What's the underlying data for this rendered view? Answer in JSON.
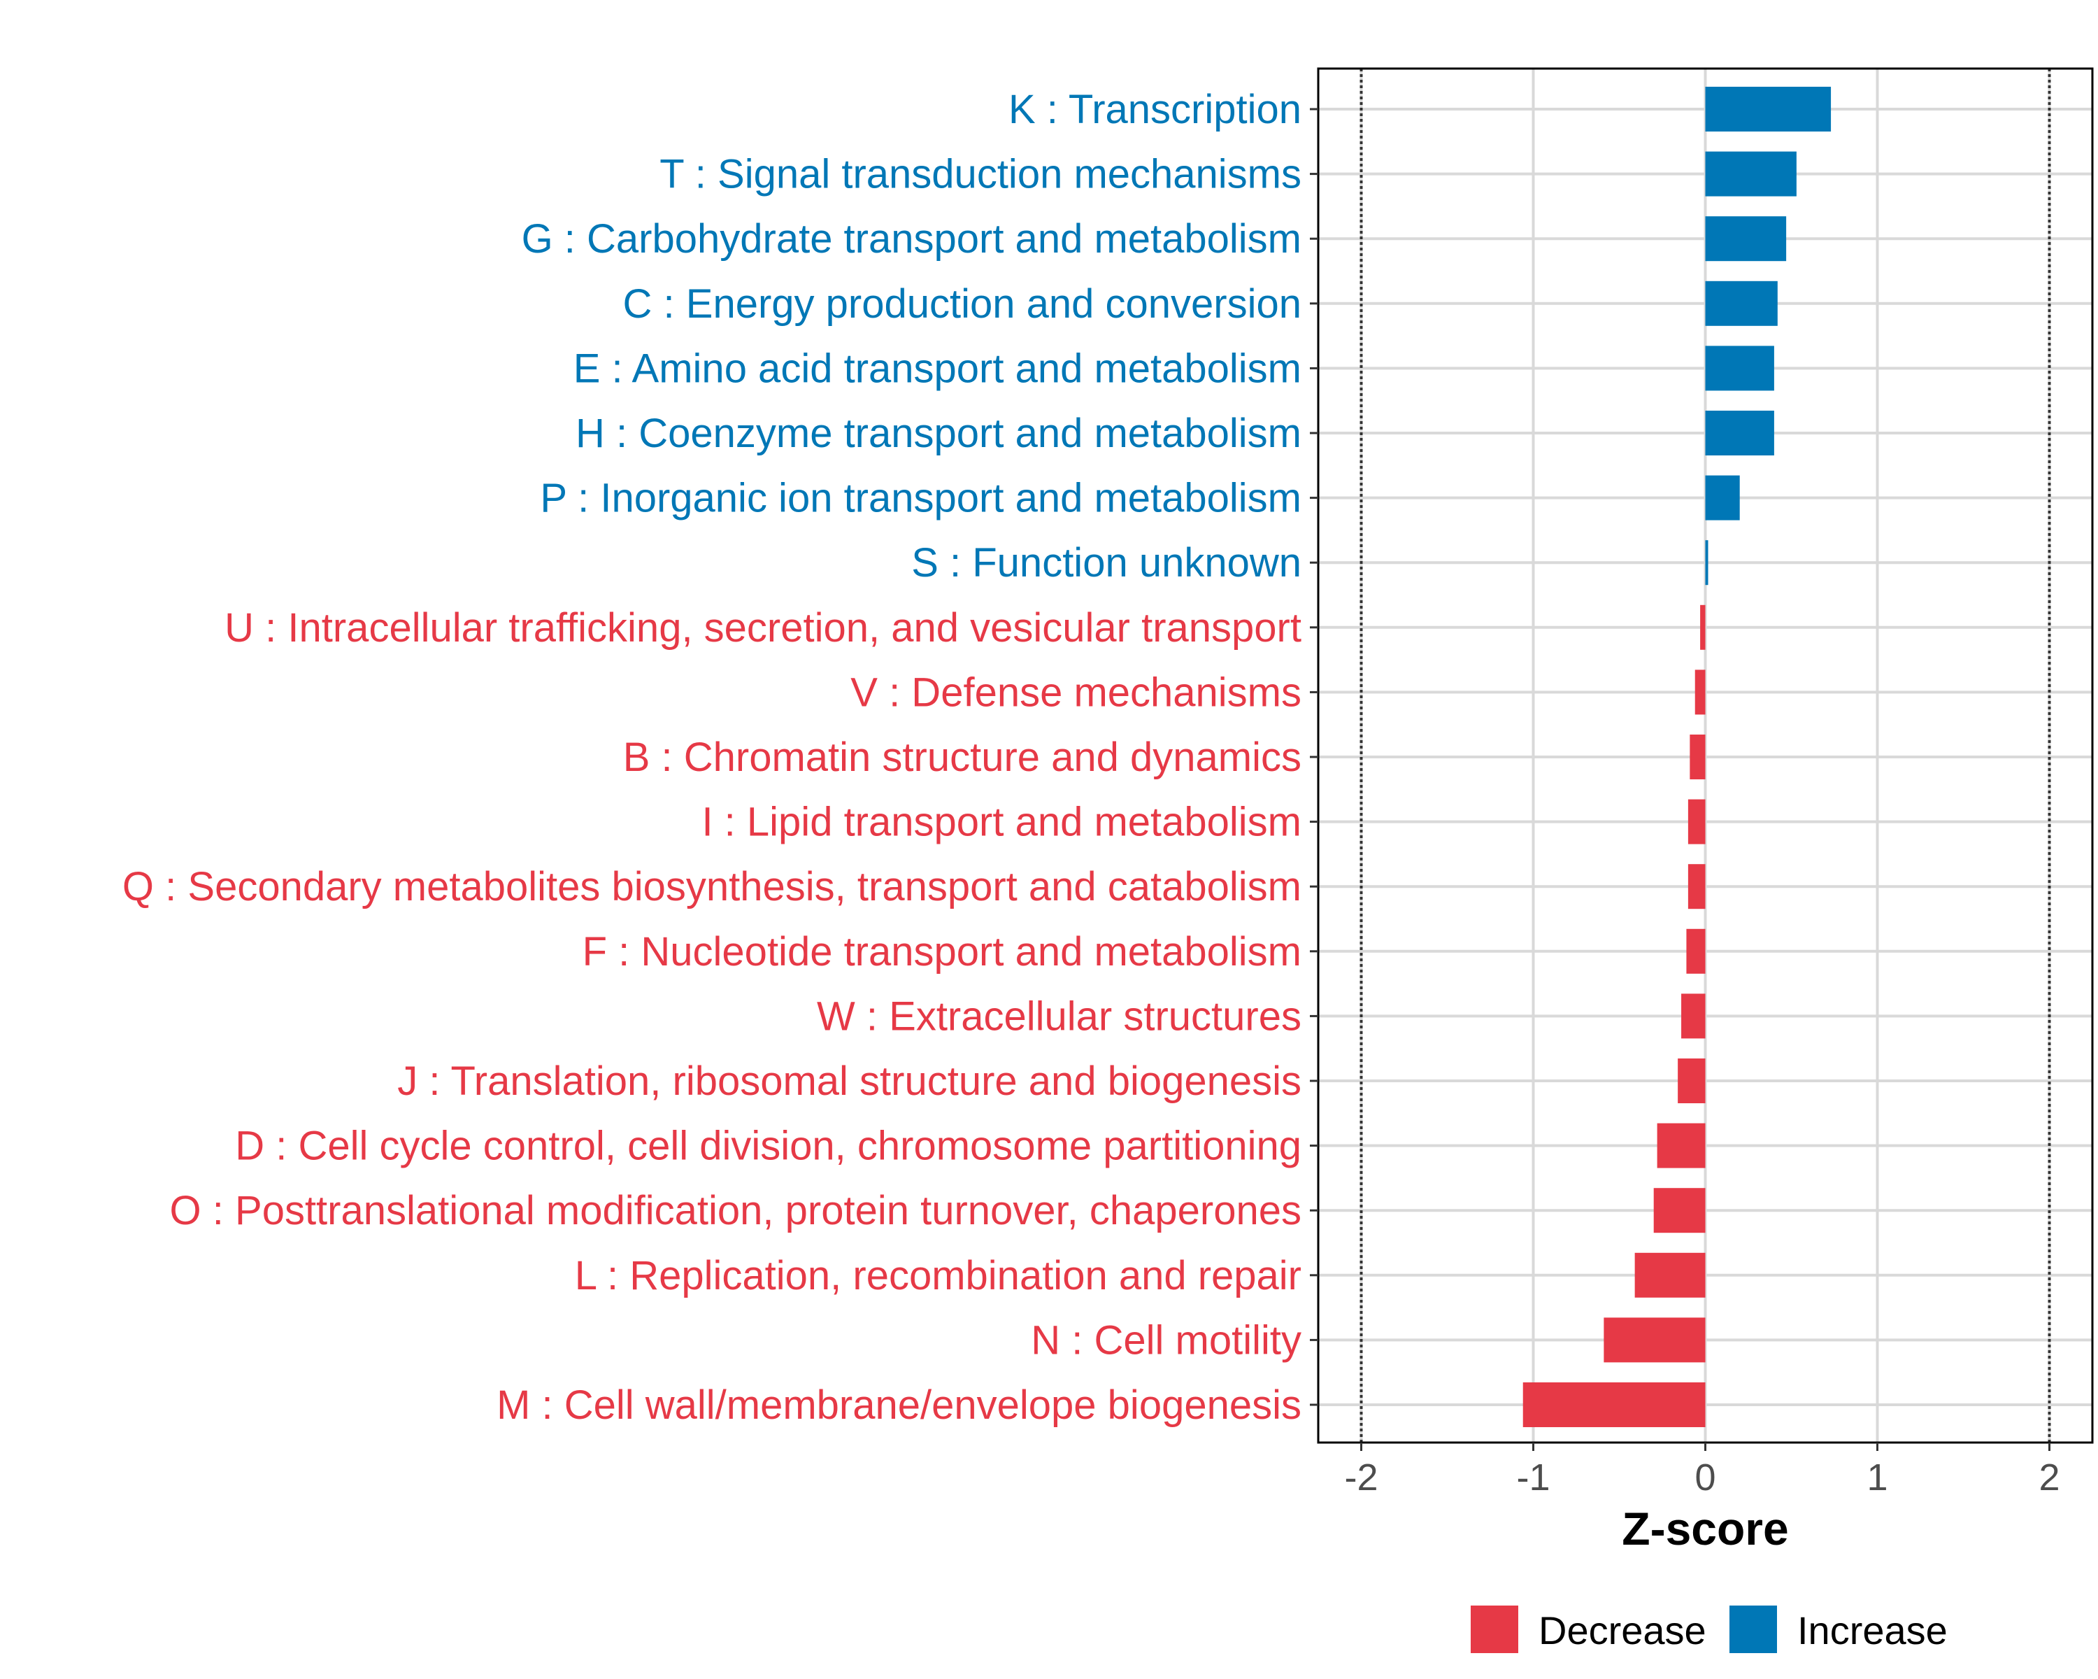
{
  "chart_data": {
    "type": "bar",
    "orientation": "horizontal",
    "categories": [
      "K : Transcription",
      "T : Signal transduction mechanisms",
      "G : Carbohydrate transport and metabolism",
      "C : Energy production and conversion",
      "E : Amino acid transport and metabolism",
      "H : Coenzyme transport and metabolism",
      "P : Inorganic ion transport and metabolism",
      "S : Function unknown",
      "U : Intracellular trafficking, secretion, and vesicular transport",
      "V : Defense mechanisms",
      "B : Chromatin structure and dynamics",
      "I : Lipid transport and metabolism",
      "Q : Secondary metabolites biosynthesis, transport and catabolism",
      "F : Nucleotide transport and metabolism",
      "W : Extracellular structures",
      "J : Translation, ribosomal structure and biogenesis",
      "D : Cell cycle control, cell division, chromosome partitioning",
      "O : Posttranslational modification, protein turnover, chaperones",
      "L : Replication, recombination and repair",
      "N : Cell motility",
      "M : Cell wall/membrane/envelope biogenesis"
    ],
    "values": [
      0.73,
      0.53,
      0.47,
      0.42,
      0.4,
      0.4,
      0.2,
      0.01,
      -0.03,
      -0.06,
      -0.09,
      -0.1,
      -0.1,
      -0.11,
      -0.14,
      -0.16,
      -0.28,
      -0.3,
      -0.41,
      -0.59,
      -1.06
    ],
    "groups": [
      "Increase",
      "Increase",
      "Increase",
      "Increase",
      "Increase",
      "Increase",
      "Increase",
      "Increase",
      "Decrease",
      "Decrease",
      "Decrease",
      "Decrease",
      "Decrease",
      "Decrease",
      "Decrease",
      "Decrease",
      "Decrease",
      "Decrease",
      "Decrease",
      "Decrease",
      "Decrease"
    ],
    "xlabel": "Z-score",
    "ylabel": "",
    "xlim": [
      -2.25,
      2.25
    ],
    "xticks": [
      -2,
      -1,
      0,
      1,
      2
    ],
    "xtick_labels": [
      "-2",
      "-1",
      "0",
      "1",
      "2"
    ],
    "reference_lines": [
      -2,
      2
    ],
    "grid": true,
    "legend": {
      "position": "bottom",
      "entries": [
        {
          "label": "Decrease",
          "color": "#E63946"
        },
        {
          "label": "Increase",
          "color": "#0077B6"
        }
      ]
    },
    "colors": {
      "Increase": "#0077B6",
      "Decrease": "#E63946"
    }
  }
}
